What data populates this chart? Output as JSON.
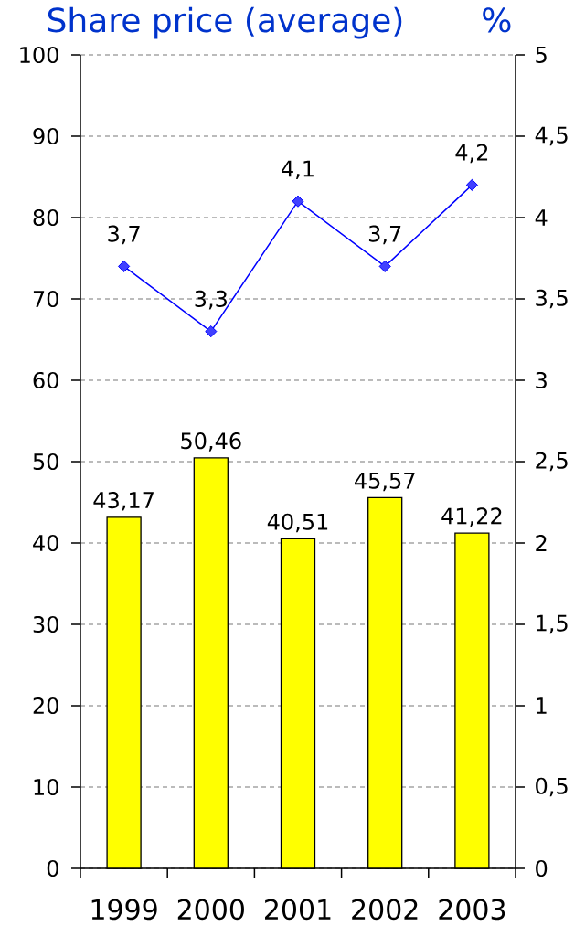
{
  "chart_data": {
    "type": "bar",
    "ylabel": "Share price (average)",
    "y2label": "%",
    "categories": [
      "1999",
      "2000",
      "2001",
      "2002",
      "2003"
    ],
    "series": [
      {
        "color": "#ffff00",
        "values": [
          43.17,
          50.46,
          40.51,
          45.57,
          41.22
        ],
        "value_labels": [
          "43,17",
          "50,46",
          "40,51",
          "45,57",
          "41,22"
        ]
      },
      {
        "type": "line",
        "axis": "y2",
        "color": "#0000ff",
        "values": [
          3.7,
          3.3,
          4.1,
          3.7,
          4.2
        ],
        "value_labels": [
          "3,7",
          "3,3",
          "4,1",
          "3,7",
          "4,2"
        ]
      }
    ],
    "ylim": [
      0,
      100
    ],
    "yticks": [
      0,
      10,
      20,
      30,
      40,
      50,
      60,
      70,
      80,
      90,
      100
    ],
    "y2lim": [
      0,
      5
    ],
    "y2ticks": [
      0,
      {
        "value": 0.5,
        "label": "0,5"
      },
      1,
      {
        "value": 1.5,
        "label": "1,5"
      },
      2,
      {
        "value": 2.5,
        "label": "2,5"
      },
      3,
      {
        "value": 3.5,
        "label": "3,5"
      },
      4,
      {
        "value": 4.5,
        "label": "4,5"
      },
      5
    ],
    "grid": "y",
    "marker": "diamond",
    "line_style": "solid"
  }
}
